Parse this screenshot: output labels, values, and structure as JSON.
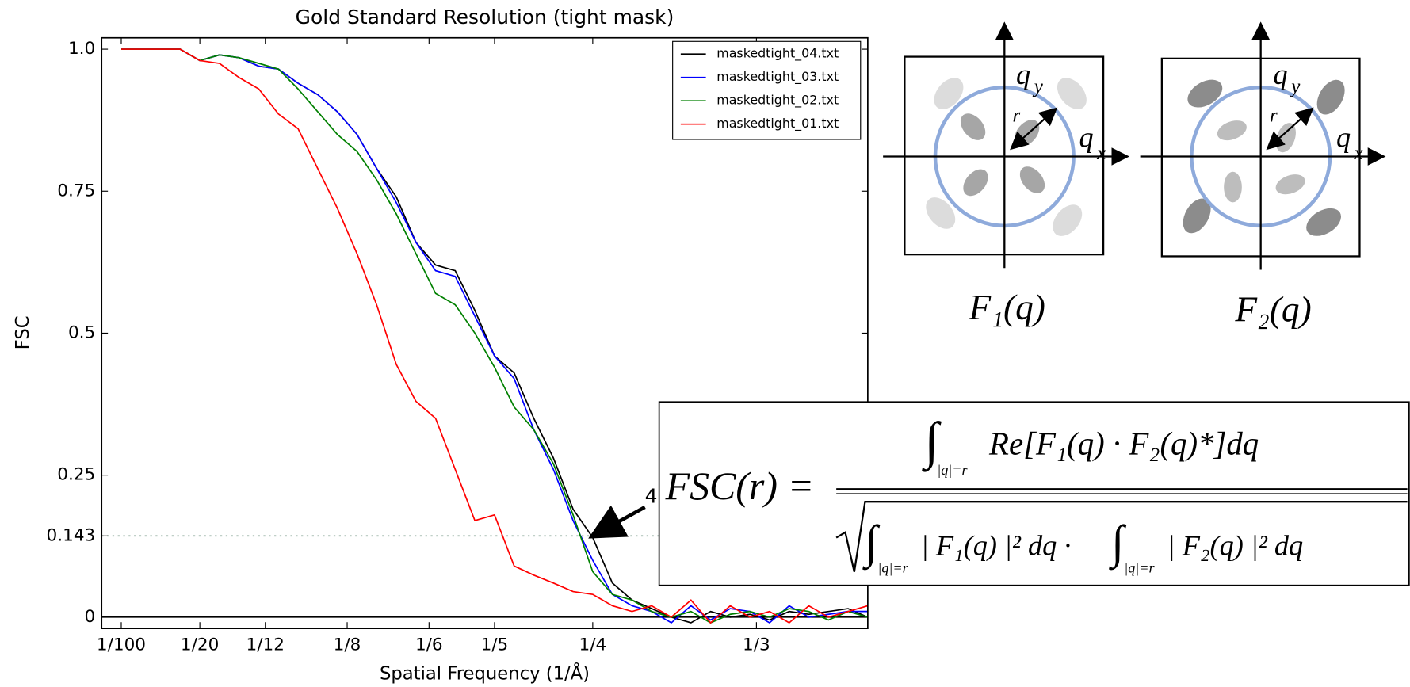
{
  "chart_data": {
    "type": "line",
    "title": "Gold Standard Resolution (tight mask)",
    "x_label": "Spatial Frequency (1/Å)",
    "y_label": "FSC",
    "x": [
      0.01,
      0.02,
      0.03,
      0.04,
      0.05,
      0.06,
      0.07,
      0.08,
      0.09,
      0.1,
      0.11,
      0.12,
      0.13,
      0.14,
      0.15,
      0.16,
      0.17,
      0.18,
      0.19,
      0.2,
      0.21,
      0.22,
      0.23,
      0.24,
      0.25,
      0.26,
      0.27,
      0.28,
      0.29,
      0.3,
      0.31,
      0.32,
      0.33,
      0.34,
      0.35,
      0.36,
      0.37,
      0.38,
      0.39
    ],
    "series": [
      {
        "name": "maskedtight_04.txt",
        "color": "#000000",
        "values": [
          1.0,
          1.0,
          1.0,
          1.0,
          0.98,
          0.99,
          0.985,
          0.97,
          0.965,
          0.94,
          0.92,
          0.89,
          0.85,
          0.79,
          0.74,
          0.66,
          0.62,
          0.61,
          0.54,
          0.46,
          0.43,
          0.35,
          0.28,
          0.19,
          0.14,
          0.06,
          0.03,
          0.015,
          0.0,
          -0.01,
          0.01,
          0.0,
          0.005,
          -0.005,
          0.01,
          0.005,
          0.01,
          0.015,
          0.0
        ]
      },
      {
        "name": "maskedtight_03.txt",
        "color": "#0000ff",
        "values": [
          1.0,
          1.0,
          1.0,
          1.0,
          0.98,
          0.99,
          0.985,
          0.97,
          0.965,
          0.94,
          0.92,
          0.89,
          0.85,
          0.79,
          0.73,
          0.66,
          0.61,
          0.6,
          0.53,
          0.46,
          0.42,
          0.33,
          0.26,
          0.17,
          0.1,
          0.04,
          0.02,
          0.01,
          -0.01,
          0.02,
          -0.005,
          0.015,
          0.01,
          -0.01,
          0.02,
          0.0,
          0.005,
          0.01,
          0.01
        ]
      },
      {
        "name": "maskedtight_02.txt",
        "color": "#008000",
        "values": [
          1.0,
          1.0,
          1.0,
          1.0,
          0.98,
          0.99,
          0.985,
          0.975,
          0.965,
          0.93,
          0.89,
          0.85,
          0.82,
          0.77,
          0.71,
          0.64,
          0.57,
          0.55,
          0.5,
          0.44,
          0.37,
          0.33,
          0.27,
          0.18,
          0.08,
          0.04,
          0.03,
          0.01,
          0.0,
          0.01,
          -0.01,
          0.005,
          0.01,
          0.0,
          0.015,
          0.01,
          -0.005,
          0.01,
          0.0
        ]
      },
      {
        "name": "maskedtight_01.txt",
        "color": "#ff0000",
        "values": [
          1.0,
          1.0,
          1.0,
          1.0,
          0.98,
          0.975,
          0.95,
          0.93,
          0.886,
          0.86,
          0.79,
          0.72,
          0.64,
          0.55,
          0.445,
          0.38,
          0.35,
          0.26,
          0.17,
          0.18,
          0.09,
          0.074,
          0.06,
          0.045,
          0.04,
          0.02,
          0.01,
          0.02,
          0.0,
          0.03,
          -0.01,
          0.02,
          0.0,
          0.01,
          -0.01,
          0.02,
          0.0,
          0.01,
          0.02
        ]
      }
    ],
    "xlim": [
      0,
      0.39
    ],
    "xticks": [
      {
        "value": 0.01,
        "label": "1/100"
      },
      {
        "value": 0.05,
        "label": "1/20"
      },
      {
        "value": 0.083333,
        "label": "1/12"
      },
      {
        "value": 0.125,
        "label": "1/8"
      },
      {
        "value": 0.166667,
        "label": "1/6"
      },
      {
        "value": 0.2,
        "label": "1/5"
      },
      {
        "value": 0.25,
        "label": "1/4"
      },
      {
        "value": 0.333333,
        "label": "1/3"
      }
    ],
    "ylim": [
      -0.02,
      1.02
    ],
    "yticks": [
      {
        "value": 1,
        "label": "1.0"
      },
      0.75,
      0.5,
      0.25,
      0.143,
      0
    ],
    "threshold": 0.143,
    "annotation": "4",
    "legend": "upper right"
  },
  "diagrams": [
    {
      "qy": {
        "base": "q",
        "sub": "y"
      },
      "qx": {
        "base": "q",
        "sub": "x"
      },
      "r": "r",
      "caption": "F₁(q)"
    },
    {
      "qy": {
        "base": "q",
        "sub": "y"
      },
      "qx": {
        "base": "q",
        "sub": "x"
      },
      "r": "r",
      "caption": "F₂(q)"
    }
  ],
  "formula": {
    "lhs": "FSC(r) =",
    "integral": "∫",
    "domain": "|q|=r",
    "numerator": "Re[F₁(q) · F₂(q)*]dq",
    "denominator_1": "| F₁(q) |² dq ·",
    "denominator_2": "| F₂(q) |² dq"
  }
}
